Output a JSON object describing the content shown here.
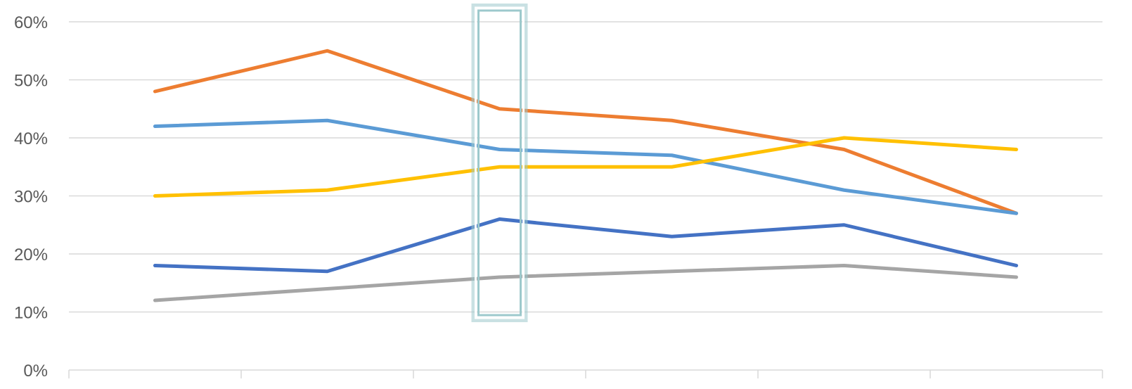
{
  "chart_data": {
    "type": "line",
    "categories": [
      "",
      "",
      "",
      "",
      "",
      ""
    ],
    "ylim": [
      0,
      0.6
    ],
    "yticks": [
      0,
      0.1,
      0.2,
      0.3,
      0.4,
      0.5,
      0.6
    ],
    "ytick_labels": [
      "0%",
      "10%",
      "20%",
      "30%",
      "40%",
      "50%",
      "60%"
    ],
    "grid": true,
    "legend": "none",
    "title": "",
    "xlabel": "",
    "ylabel": "",
    "highlight_category_index": 2,
    "highlight_color": "#9dc9cc",
    "series": [
      {
        "color": "#ed7d31",
        "values": [
          0.48,
          0.55,
          0.45,
          0.43,
          0.38,
          0.27
        ]
      },
      {
        "color": "#5b9bd5",
        "values": [
          0.42,
          0.43,
          0.38,
          0.37,
          0.31,
          0.27
        ]
      },
      {
        "color": "#ffc000",
        "values": [
          0.3,
          0.31,
          0.35,
          0.35,
          0.4,
          0.38
        ]
      },
      {
        "color": "#4472c4",
        "values": [
          0.18,
          0.17,
          0.26,
          0.23,
          0.25,
          0.18
        ]
      },
      {
        "color": "#a5a5a5",
        "values": [
          0.12,
          0.14,
          0.16,
          0.17,
          0.18,
          0.16
        ]
      }
    ]
  }
}
